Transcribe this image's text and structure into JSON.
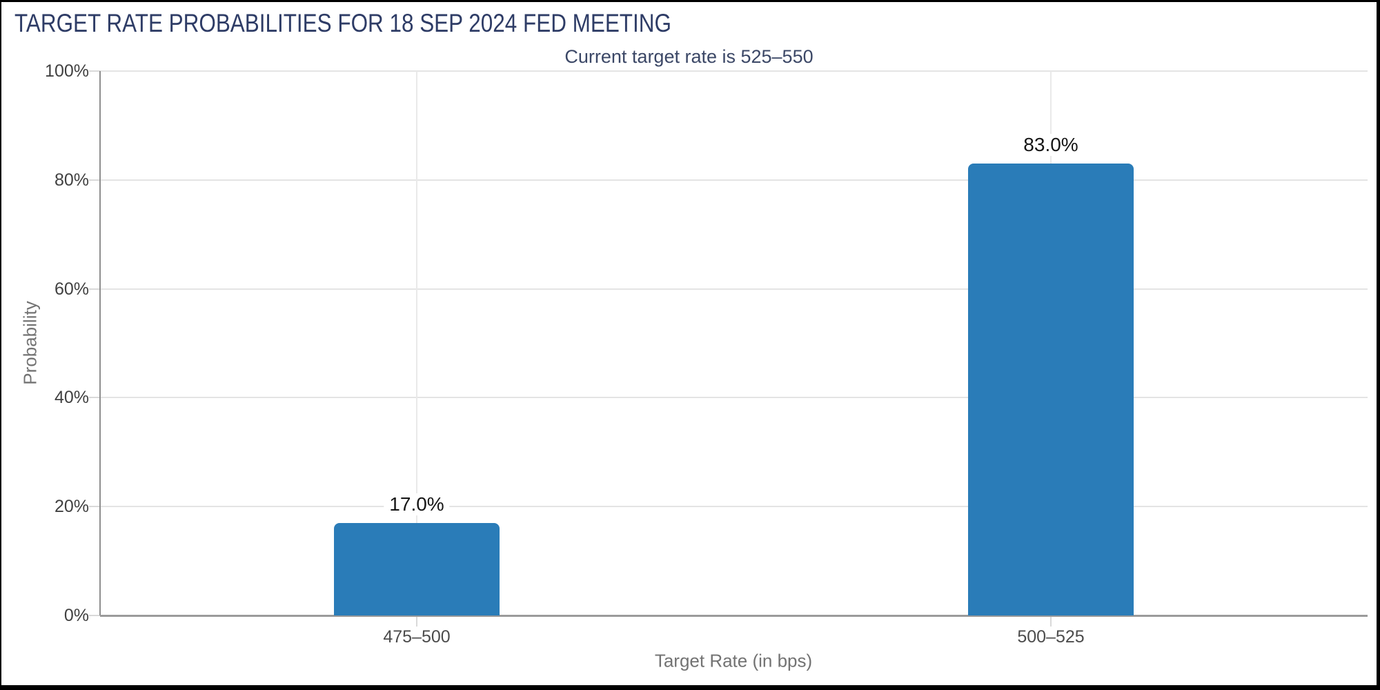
{
  "header": {
    "title": "TARGET RATE PROBABILITIES FOR 18 SEP 2024 FED MEETING",
    "subtitle": "Current target rate is 525–550"
  },
  "chart_data": {
    "type": "bar",
    "title": "TARGET RATE PROBABILITIES FOR 18 SEP 2024 FED MEETING",
    "subtitle": "Current target rate is 525–550",
    "categories": [
      "475–500",
      "500–525"
    ],
    "values": [
      17.0,
      83.0
    ],
    "value_labels": [
      "17.0%",
      "83.0%"
    ],
    "xlabel": "Target Rate (in bps)",
    "ylabel": "Probability",
    "ylim": [
      0,
      100
    ],
    "y_ticks": [
      {
        "value": 0,
        "label": "0%"
      },
      {
        "value": 20,
        "label": "20%"
      },
      {
        "value": 40,
        "label": "40%"
      },
      {
        "value": 60,
        "label": "60%"
      },
      {
        "value": 80,
        "label": "80%"
      },
      {
        "value": 100,
        "label": "100%"
      }
    ],
    "grid": true,
    "legend_position": "none",
    "bar_color": "#2a7cb8"
  },
  "colors": {
    "title_text": "#2e3c66",
    "subtitle_text": "#3b4766",
    "bar": "#2a7cb8",
    "gridline": "#e4e4e4",
    "axis_line": "#8e8e8e",
    "axis_title_text": "#737373",
    "tick_label_text": "#414141",
    "value_label_text": "#161616",
    "background": "#ffffff",
    "page_border": "#000000"
  }
}
